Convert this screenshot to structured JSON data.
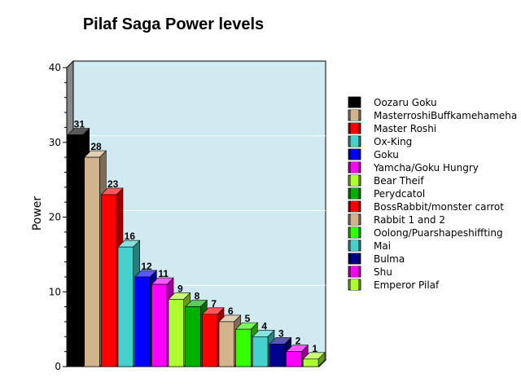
{
  "chart_data": {
    "type": "bar",
    "style": "3d",
    "title": "Pilaf Saga Power levels",
    "xlabel": "",
    "ylabel": "Power",
    "ylim": [
      0,
      40
    ],
    "yticks": [
      0,
      10,
      20,
      30,
      40
    ],
    "grid": true,
    "legend_position": "right",
    "plot_background": "#d1e9f1",
    "categories": [
      "Oozaru Goku",
      "MasterroshiBuffkamehameha",
      "Master Roshi",
      "Ox-King",
      "Goku",
      "Yamcha/Goku Hungry",
      "Bear Theif",
      "Perydcatol",
      "BossRabbit/monster carrot",
      "Rabbit 1 and 2",
      "Oolong/Puarshapeshiffting",
      "Mai",
      "Bulma",
      "Shu",
      "Emperor Pilaf"
    ],
    "values": [
      31,
      28,
      23,
      16,
      12,
      11,
      9,
      8,
      7,
      6,
      5,
      4,
      3,
      2,
      1
    ],
    "colors": [
      "#000000",
      "#d2b48c",
      "#ff0000",
      "#48d1cc",
      "#0000ff",
      "#ff00ff",
      "#adff2f",
      "#00b000",
      "#ff0000",
      "#d2b48c",
      "#33ff00",
      "#48d1cc",
      "#00008b",
      "#ff00ff",
      "#adff2f"
    ]
  }
}
